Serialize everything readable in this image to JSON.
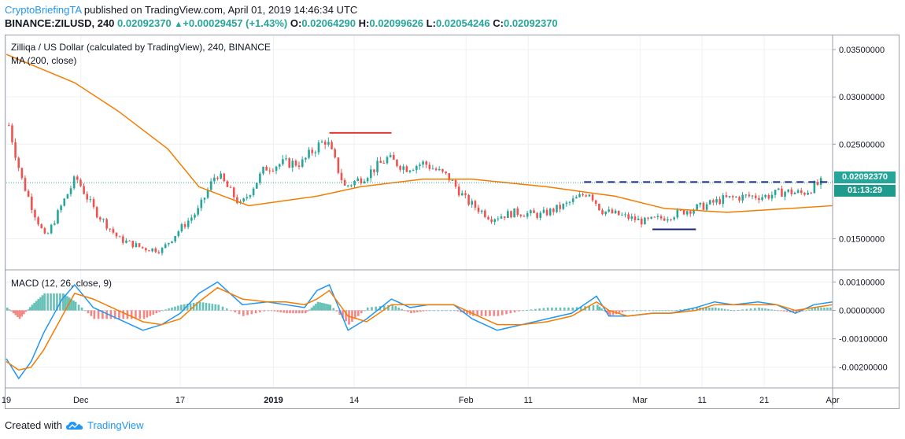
{
  "header": {
    "author": "CryptoBriefingTA",
    "published_text": " published on TradingView.com, April 01, 2019 14:46:34 UTC",
    "symbol": "BINANCE:ZILUSD, 240",
    "last": "0.02092370",
    "change": "+0.00029457 (+1.43%)",
    "o_label": "O:",
    "o_value": "0.02064290",
    "h_label": "H:",
    "h_value": "0.02099626",
    "l_label": "L:",
    "l_value": "0.02054246",
    "c_label": "C:",
    "c_value": "0.02092370"
  },
  "legend": {
    "title": "Zilliqa / US Dollar (calculated by TradingView), 240, BINANCE",
    "ma": "MA (200, close)",
    "macd": "MACD (12, 26, close, 9)"
  },
  "price_tag": {
    "price": "0.02092370",
    "countdown": "01:13:29"
  },
  "footer": {
    "created_with": "Created with",
    "brand": "TradingView"
  },
  "colors": {
    "up": "#26a69a",
    "down": "#ef5350",
    "ma": "#f57c00",
    "macd": "#2196f3",
    "signal": "#f57c00",
    "resistance": "#e53935",
    "support": "#1a237e"
  },
  "chart_data": [
    {
      "type": "candlestick",
      "title": "Zilliqa / US Dollar (calculated by TradingView), 240, BINANCE",
      "ylim": [
        0.0118,
        0.0365
      ],
      "y_ticks": [
        "0.03500000",
        "0.03000000",
        "0.02500000",
        "0.01500000"
      ],
      "x_ticks": [
        "19",
        "Dec",
        "17",
        "2019",
        "14",
        "Feb",
        "11",
        "Mar",
        "11",
        "21",
        "Apr"
      ],
      "x_range": [
        "2018-11-19",
        "2019-04-01"
      ],
      "close_path_dates": [
        "2018-11-19",
        "2018-11-21",
        "2018-11-23",
        "2018-11-25",
        "2018-11-28",
        "2018-11-30",
        "2018-12-03",
        "2018-12-07",
        "2018-12-11",
        "2018-12-14",
        "2018-12-17",
        "2018-12-20",
        "2018-12-23",
        "2018-12-27",
        "2018-12-31",
        "2019-01-03",
        "2019-01-06",
        "2019-01-08",
        "2019-01-10",
        "2019-01-13",
        "2019-01-16",
        "2019-01-20",
        "2019-01-23",
        "2019-01-26",
        "2019-01-30",
        "2019-02-02",
        "2019-02-06",
        "2019-02-10",
        "2019-02-14",
        "2019-02-18",
        "2019-02-22",
        "2019-02-24",
        "2019-02-27",
        "2019-03-03",
        "2019-03-06",
        "2019-03-10",
        "2019-03-13",
        "2019-03-16",
        "2019-03-20",
        "2019-03-23",
        "2019-03-26",
        "2019-03-29",
        "2019-04-01"
      ],
      "close_path_values": [
        0.027,
        0.0215,
        0.018,
        0.015,
        0.019,
        0.0215,
        0.018,
        0.015,
        0.014,
        0.0138,
        0.016,
        0.018,
        0.022,
        0.0185,
        0.0225,
        0.023,
        0.023,
        0.0245,
        0.0255,
        0.0205,
        0.0215,
        0.0235,
        0.0225,
        0.023,
        0.0215,
        0.019,
        0.0172,
        0.0178,
        0.0175,
        0.0185,
        0.02,
        0.018,
        0.0175,
        0.0168,
        0.0172,
        0.018,
        0.0185,
        0.0192,
        0.0195,
        0.0195,
        0.02,
        0.0198,
        0.0209237
      ],
      "ma_dates": [
        "2018-11-19",
        "2018-11-30",
        "2018-12-07",
        "2018-12-15",
        "2018-12-20",
        "2018-12-28",
        "2019-01-08",
        "2019-01-15",
        "2019-01-25",
        "2019-02-02",
        "2019-02-14",
        "2019-02-25",
        "2019-03-05",
        "2019-03-15",
        "2019-03-25",
        "2019-04-01"
      ],
      "ma_values": [
        0.0345,
        0.0315,
        0.0285,
        0.0245,
        0.0205,
        0.0185,
        0.0195,
        0.0205,
        0.0213,
        0.0213,
        0.0205,
        0.0195,
        0.0182,
        0.0178,
        0.0182,
        0.0185
      ],
      "resistance_line": {
        "from": "2019-01-10",
        "to": "2019-01-20",
        "value": 0.0262
      },
      "dashed_line": {
        "from": "2019-02-20",
        "to": "2019-04-01",
        "value": 0.021
      },
      "support_line": {
        "from": "2019-03-03",
        "to": "2019-03-10",
        "value": 0.016
      },
      "last_price": 0.0209237
    },
    {
      "type": "line",
      "title": "MACD (12, 26, close, 9)",
      "ylim": [
        -0.0027,
        0.0014
      ],
      "y_ticks": [
        "0.00100000",
        "0.00000000",
        "-0.00100000",
        "-0.00200000"
      ],
      "x": [
        "2018-11-19",
        "2018-11-21",
        "2018-11-23",
        "2018-11-25",
        "2018-11-28",
        "2018-11-30",
        "2018-12-03",
        "2018-12-07",
        "2018-12-11",
        "2018-12-14",
        "2018-12-17",
        "2018-12-20",
        "2018-12-23",
        "2018-12-27",
        "2018-12-31",
        "2019-01-03",
        "2019-01-06",
        "2019-01-08",
        "2019-01-10",
        "2019-01-13",
        "2019-01-16",
        "2019-01-20",
        "2019-01-23",
        "2019-01-26",
        "2019-01-30",
        "2019-02-02",
        "2019-02-06",
        "2019-02-10",
        "2019-02-14",
        "2019-02-18",
        "2019-02-22",
        "2019-02-24",
        "2019-02-27",
        "2019-03-03",
        "2019-03-06",
        "2019-03-10",
        "2019-03-13",
        "2019-03-16",
        "2019-03-20",
        "2019-03-23",
        "2019-03-26",
        "2019-03-29",
        "2019-04-01"
      ],
      "series": [
        {
          "values": [
            -0.0017,
            -0.0024,
            -0.0018,
            -0.0008,
            0.0004,
            0.0009,
            0.0001,
            -0.0003,
            -0.0007,
            -0.0005,
            -0.0001,
            0.0006,
            0.001,
            0.0002,
            0.0003,
            0.0002,
            0.0001,
            0.0007,
            0.0009,
            -0.0007,
            -0.0003,
            0.0004,
            0.0001,
            0.0002,
            0.0002,
            -0.0003,
            -0.0007,
            -0.0005,
            -0.0003,
            -0.0001,
            0.0005,
            -0.0002,
            -0.0002,
            -0.0001,
            -0.0001,
            0.0001,
            0.0003,
            0.0002,
            0.0003,
            0.0002,
            -0.0001,
            0.0002,
            0.0003
          ]
        },
        {
          "values": [
            -0.0018,
            -0.0021,
            -0.002,
            -0.0014,
            -0.0002,
            0.0006,
            0.0004,
            0.0,
            -0.0004,
            -0.0005,
            -0.0003,
            0.0003,
            0.0008,
            0.0004,
            0.0003,
            0.0003,
            0.0002,
            0.0004,
            0.0007,
            -0.0002,
            -0.0004,
            0.0002,
            0.0002,
            0.0002,
            0.0002,
            -0.0001,
            -0.0005,
            -0.0005,
            -0.0004,
            -0.0002,
            0.0003,
            0.0,
            -0.0002,
            -0.0001,
            -0.0001,
            0.0,
            0.0002,
            0.0002,
            0.0002,
            0.0002,
            0.0,
            0.0001,
            0.0002
          ]
        }
      ]
    }
  ]
}
